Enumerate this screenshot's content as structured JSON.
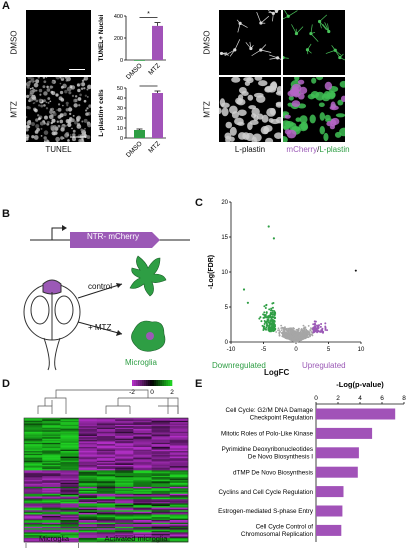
{
  "panel_labels": {
    "a": "A",
    "b": "B",
    "c": "C",
    "d": "D",
    "e": "E"
  },
  "panel_a": {
    "row_labels": [
      "DMSO",
      "MTZ"
    ],
    "left_caption": "TUNEL",
    "right_captions": [
      "L-plastin",
      "mCherry/L-plastin"
    ],
    "right_caption_parts": {
      "mcherry": "mCherry",
      "slash": "/",
      "lplastin": "L-plastin"
    }
  },
  "panel_b": {
    "construct_label": "NTR- mCherry",
    "control_label": "control",
    "mtz_label": "+ MTZ",
    "cell_label": "Microglia",
    "colors": {
      "construct": "#9b59b6",
      "microglia": "#2e9e44",
      "brain_top": "#9b59b6"
    }
  },
  "panel_c": {
    "xlabel": "LogFC",
    "ylabel": "-Log(FDR)",
    "down_label": "Downregulated",
    "up_label": "Upregulated",
    "colors": {
      "down": "#2e9e44",
      "up": "#9b59b6",
      "ns": "#a6a6a6"
    }
  },
  "panel_d": {
    "scale_ticks": [
      "-2",
      "0",
      "2"
    ],
    "group_labels": [
      "Microglia",
      "Activated microglia"
    ],
    "colors": {
      "low": "#1fd022",
      "mid": "#000000",
      "high": "#b02ec4"
    }
  },
  "panel_e": {
    "colors": {
      "bar": "#a152b8"
    }
  },
  "chart_data": [
    {
      "type": "bar",
      "id": "tunel",
      "categories": [
        "DMSO",
        "MTZ"
      ],
      "values": [
        0,
        310
      ],
      "errors": [
        0,
        30
      ],
      "ylabel": "TUNEL+ Nuclei",
      "ylim": [
        0,
        400
      ],
      "yticks": [
        "0",
        "200",
        "400"
      ],
      "significance": "*",
      "colors": [
        "#2e9e44",
        "#a152b8"
      ]
    },
    {
      "type": "bar",
      "id": "lplastin",
      "categories": [
        "DMSO",
        "MTZ"
      ],
      "values": [
        8,
        45
      ],
      "errors": [
        1,
        2
      ],
      "ylabel": "L-plastin+ cells",
      "ylim": [
        0,
        50
      ],
      "yticks": [
        "0",
        "10",
        "20",
        "30",
        "40",
        "50"
      ],
      "significance": "***",
      "colors": [
        "#2e9e44",
        "#a152b8"
      ]
    },
    {
      "type": "scatter",
      "id": "volcano",
      "title": "",
      "xlabel": "LogFC",
      "ylabel": "-Log(FDR)",
      "xlim": [
        -10,
        10
      ],
      "ylim": [
        0,
        20
      ],
      "xticks": [
        "-10",
        "-5",
        "0",
        "5",
        "10"
      ],
      "yticks": [
        "0",
        "5",
        "10",
        "15",
        "20"
      ],
      "annotations": [
        "Downregulated",
        "Upregulated"
      ]
    },
    {
      "type": "bar",
      "id": "pathways",
      "orientation": "horizontal",
      "xlabel": "-Log(p-value)",
      "xlim": [
        0,
        8
      ],
      "xticks": [
        "0",
        "2",
        "4",
        "6",
        "8"
      ],
      "categories": [
        "Cell Cycle: G2/M DNA Damage\nCheckpoint Regulation",
        "Mitotic Roles of Polo-Like Kinase",
        "Pyrimidine Deoxyribonucleotides\nDe Novo Biosynthesis I",
        "dTMP De Novo Biosynthesis",
        "Cyclins and Cell Cycle Regulation",
        "Estrogen-mediated S-phase Entry",
        "Cell Cycle Control of\nChromosomal Replication"
      ],
      "values": [
        7.2,
        5.1,
        3.9,
        3.8,
        2.5,
        2.4,
        2.3
      ]
    }
  ]
}
